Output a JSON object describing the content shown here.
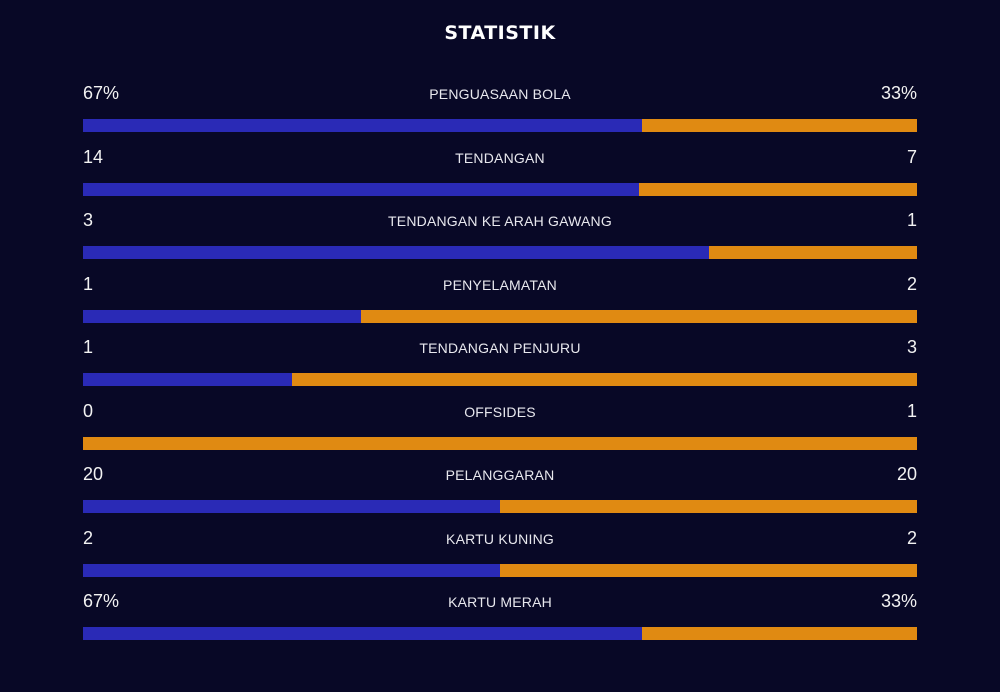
{
  "title": "STATISTIK",
  "colors": {
    "home": "#2a2ab6",
    "away": "#e08a12",
    "background": "#080826"
  },
  "stats": [
    {
      "label": "PENGUASAAN BOLA",
      "home": "67%",
      "away": "33%",
      "home_share": 0.67
    },
    {
      "label": "TENDANGAN",
      "home": "14",
      "away": "7",
      "home_share": 0.667
    },
    {
      "label": "TENDANGAN KE ARAH GAWANG",
      "home": "3",
      "away": "1",
      "home_share": 0.75
    },
    {
      "label": "PENYELAMATAN",
      "home": "1",
      "away": "2",
      "home_share": 0.333
    },
    {
      "label": "TENDANGAN PENJURU",
      "home": "1",
      "away": "3",
      "home_share": 0.25
    },
    {
      "label": "OFFSIDES",
      "home": "0",
      "away": "1",
      "home_share": 0
    },
    {
      "label": "PELANGGARAN",
      "home": "20",
      "away": "20",
      "home_share": 0.5
    },
    {
      "label": "KARTU KUNING",
      "home": "2",
      "away": "2",
      "home_share": 0.5
    },
    {
      "label": "KARTU MERAH",
      "home": "67%",
      "away": "33%",
      "home_share": 0.67
    }
  ]
}
